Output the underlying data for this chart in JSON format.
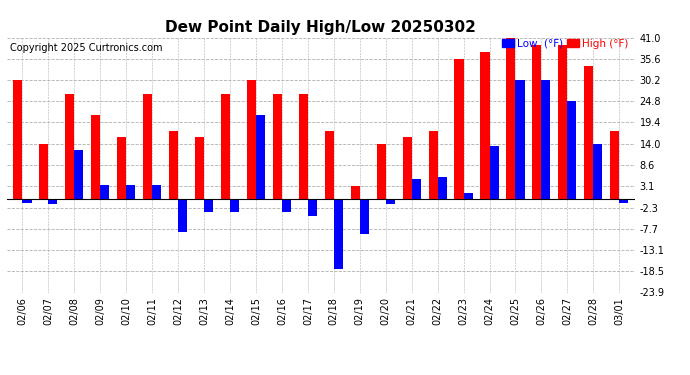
{
  "title": "Dew Point Daily High/Low 20250302",
  "copyright": "Copyright 2025 Curtronics.com",
  "legend_low": "Low  (°F)",
  "legend_high": "High (°F)",
  "dates": [
    "02/06",
    "02/07",
    "02/08",
    "02/09",
    "02/10",
    "02/11",
    "02/12",
    "02/13",
    "02/14",
    "02/15",
    "02/16",
    "02/17",
    "02/18",
    "02/19",
    "02/20",
    "02/21",
    "02/22",
    "02/23",
    "02/24",
    "02/25",
    "02/26",
    "02/27",
    "02/28",
    "03/01"
  ],
  "high": [
    30.2,
    14.0,
    26.6,
    21.2,
    15.8,
    26.6,
    17.2,
    15.8,
    26.6,
    30.2,
    26.6,
    26.6,
    17.2,
    3.1,
    14.0,
    15.8,
    17.2,
    35.6,
    37.4,
    41.0,
    39.2,
    39.2,
    33.8,
    17.2
  ],
  "low": [
    -1.0,
    -1.5,
    12.4,
    3.5,
    3.5,
    3.5,
    -8.5,
    -3.5,
    -3.5,
    21.2,
    -3.5,
    -4.5,
    -17.8,
    -9.0,
    -1.5,
    5.0,
    5.5,
    1.5,
    13.5,
    30.2,
    30.2,
    24.8,
    14.0,
    -1.0
  ],
  "ylim": [
    -23.9,
    41.0
  ],
  "yticks": [
    41.0,
    35.6,
    30.2,
    24.8,
    19.4,
    14.0,
    8.6,
    3.1,
    -2.3,
    -7.7,
    -13.1,
    -18.5,
    -23.9
  ],
  "bar_width": 0.35,
  "high_color": "#ff0000",
  "low_color": "#0000ff",
  "background_color": "#ffffff",
  "grid_color": "#b0b0b0",
  "title_fontsize": 11,
  "tick_fontsize": 7,
  "copyright_fontsize": 7
}
